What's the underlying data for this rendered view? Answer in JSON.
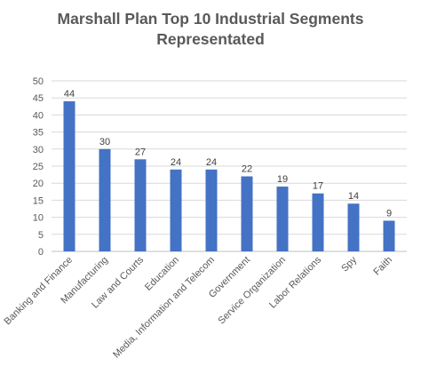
{
  "chart_data": {
    "type": "bar",
    "title_lines": [
      "Marshall Plan Top 10 Industrial Segments",
      "Representated"
    ],
    "categories": [
      "Banking and Finance",
      "Manufacturing",
      "Law and Courts",
      "Education",
      "Media, Information and Telecom",
      "Government",
      "Service Organization",
      "Labor Relations",
      "Spy",
      "Faith"
    ],
    "values": [
      44,
      30,
      27,
      24,
      24,
      22,
      19,
      17,
      14,
      9
    ],
    "xlabel": "",
    "ylabel": "",
    "ylim": [
      0,
      50
    ],
    "yticks": [
      "0",
      "5",
      "10",
      "15",
      "20",
      "25",
      "30",
      "35",
      "40",
      "45",
      "50"
    ],
    "grid": true,
    "legend": "none",
    "data_labels": true,
    "colors": {
      "bar": "#4472C4",
      "grid": "#D9D9D9",
      "text": "#595959",
      "title": "#595959"
    }
  }
}
